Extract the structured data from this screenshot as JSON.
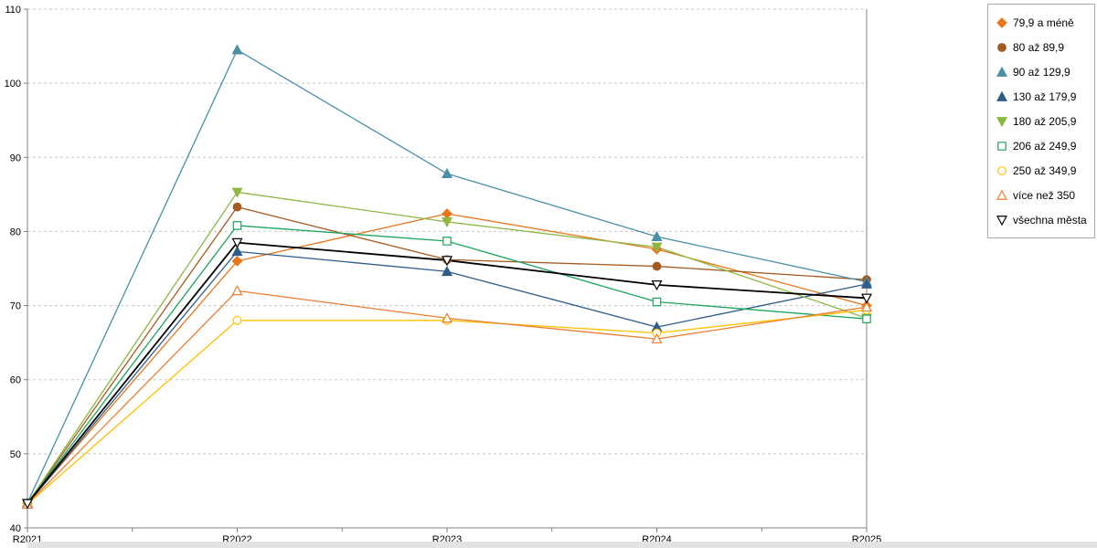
{
  "chart_data": {
    "type": "line",
    "title": "",
    "xlabel": "",
    "ylabel": "",
    "x_labels": [
      "R2021",
      "R2022",
      "R2023",
      "R2024",
      "R2025"
    ],
    "ylim": [
      40,
      110
    ],
    "y_ticks": [
      40,
      50,
      60,
      70,
      80,
      90,
      100,
      110
    ],
    "grid": "horizontal-dashed",
    "legend_position": "right-top",
    "series": [
      {
        "name": "79,9 a méně",
        "color": "#E8761B",
        "marker": "diamond",
        "fill": true,
        "line_width": 1.3,
        "values": [
          43.3,
          76.0,
          82.4,
          77.6,
          70.0
        ]
      },
      {
        "name": "80 až 89,9",
        "color": "#A55A20",
        "marker": "circle",
        "fill": true,
        "line_width": 1.3,
        "values": [
          43.3,
          83.3,
          76.2,
          75.3,
          73.5
        ]
      },
      {
        "name": "90 až 129,9",
        "color": "#4A90A4",
        "marker": "triangle-up",
        "fill": true,
        "line_width": 1.3,
        "values": [
          43.4,
          104.5,
          87.8,
          79.3,
          73.2
        ]
      },
      {
        "name": "130 až 179,9",
        "color": "#2E5C8A",
        "marker": "triangle-up",
        "fill": true,
        "line_width": 1.3,
        "values": [
          43.2,
          77.3,
          74.6,
          67.1,
          72.9
        ]
      },
      {
        "name": "180 až 205,9",
        "color": "#8DB843",
        "marker": "triangle-down",
        "fill": true,
        "line_width": 1.3,
        "values": [
          43.3,
          85.3,
          81.3,
          77.9,
          68.3
        ]
      },
      {
        "name": "206 až 249,9",
        "color": "#1DA45E",
        "marker": "square",
        "fill": false,
        "line_width": 1.3,
        "values": [
          43.3,
          80.8,
          78.7,
          70.5,
          68.2
        ]
      },
      {
        "name": "250 až 349,9",
        "color": "#FFC000",
        "marker": "circle",
        "fill": false,
        "line_width": 1.3,
        "values": [
          43.2,
          68.0,
          68.0,
          66.3,
          69.4
        ]
      },
      {
        "name": "více než 350",
        "color": "#ED7D31",
        "marker": "triangle-up",
        "fill": false,
        "line_width": 1.3,
        "values": [
          43.2,
          72.0,
          68.3,
          65.5,
          69.8
        ]
      },
      {
        "name": "všechna města",
        "color": "#000000",
        "marker": "triangle-down",
        "fill": false,
        "line_width": 1.8,
        "values": [
          43.3,
          78.5,
          76.1,
          72.8,
          71.0
        ]
      }
    ],
    "colors": {
      "gridline": "#c8c8c8",
      "axis": "#808080",
      "label": "#000000",
      "background": "#ffffff"
    }
  }
}
